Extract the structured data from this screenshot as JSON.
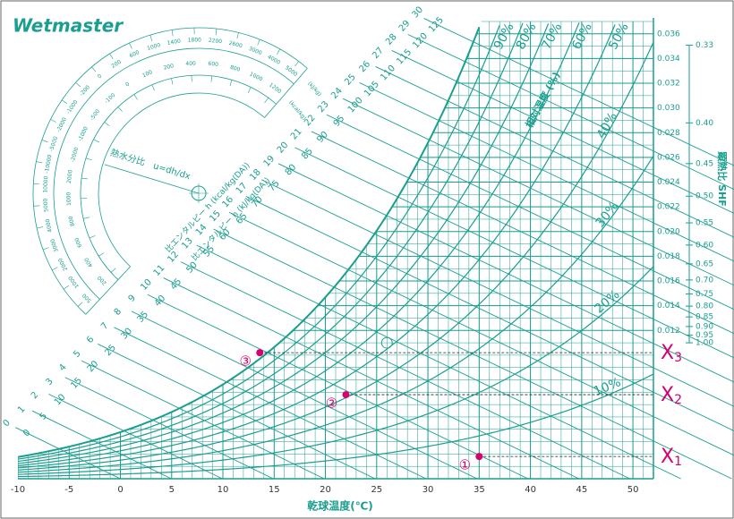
{
  "brand": "Wetmaster",
  "chart_data": {
    "type": "psychrometric",
    "color": "#1a9e8f",
    "point_color": "#d6006e",
    "x_label": "乾球温度(℃)",
    "xlim": [
      -10,
      52
    ],
    "xticks": [
      -10,
      -5,
      0,
      5,
      10,
      15,
      20,
      25,
      30,
      35,
      40,
      45,
      50
    ],
    "x_minor_step": 1,
    "ylim": [
      0,
      0.037
    ],
    "yticks": [
      0.012,
      0.014,
      0.016,
      0.018,
      {
        "value": 0.02,
        "label": "0.020"
      },
      0.022,
      0.024,
      0.026,
      0.028,
      {
        "value": 0.03,
        "label": "0.030"
      },
      0.032,
      0.034,
      0.036
    ],
    "y_minor_step": 0.001,
    "saturation_rh": 100,
    "rh_label": "相対湿度 (%)",
    "rh_curves": {
      "values": [
        10,
        20,
        30,
        40,
        50,
        60,
        70,
        80,
        90
      ],
      "value_labels": [
        "10%",
        "20%",
        "30%",
        "40%",
        "50%",
        "60%",
        "70%",
        "80%",
        "90%"
      ]
    },
    "enthalpy_label": "比エンタルピー h (kJ/kg(DA))",
    "enthalpy_kj": [
      0,
      5,
      10,
      15,
      20,
      25,
      30,
      35,
      40,
      45,
      50,
      55,
      60,
      65,
      70,
      75,
      80,
      85,
      90,
      95,
      100,
      105,
      110,
      115,
      120,
      125
    ],
    "enthalpy_kcal_label": "比エンタルピー h (kcal/kg(DA))",
    "enthalpy_kcal": [
      0,
      1,
      2,
      3,
      4,
      5,
      6,
      7,
      8,
      9,
      10,
      11,
      12,
      13,
      14,
      15,
      16,
      17,
      18,
      19,
      20,
      21,
      22,
      23,
      24,
      25,
      26,
      27,
      28,
      29,
      30
    ],
    "shf_label": "顕熱比 SHF",
    "shf_ticks": [
      0.33,
      {
        "value": 0.4,
        "label": "0.40"
      },
      0.45,
      {
        "value": 0.5,
        "label": "0.50"
      },
      0.55,
      {
        "value": 0.6,
        "label": "0.60"
      },
      0.65,
      {
        "value": 0.7,
        "label": "0.70"
      },
      0.75,
      {
        "value": 0.8,
        "label": "0.80"
      },
      0.85,
      {
        "value": 0.9,
        "label": "0.90"
      },
      0.95,
      {
        "value": 1,
        "label": "1.00"
      }
    ],
    "shf_reference": {
      "x": 26,
      "y": 0.011
    },
    "protractor": {
      "label": "熱水分比　u=dh/dx",
      "outer_unit": "(kJ/kg)",
      "inner_unit": "(kcal/kg)",
      "outer_ticks": [
        "5000",
        "4000",
        "3000",
        "2600",
        "2200",
        "1800",
        "1400",
        "1000",
        "600",
        "200",
        "0",
        "-200",
        "-1000",
        "-2000",
        "-5000",
        "-10000",
        "10000",
        "5000",
        "4000",
        "3000",
        "2000",
        "1000",
        "500"
      ],
      "inner_ticks": [
        "1200",
        "1000",
        "800",
        "600",
        "400",
        "200",
        "100",
        "0",
        "-100",
        "-500",
        "-1000",
        "-2000",
        "2000",
        "1000",
        "800",
        "600",
        "400",
        "200"
      ]
    },
    "points": [
      {
        "label": "①",
        "marker": "X",
        "marker_sub": "1",
        "x": 35,
        "y": 0.0018
      },
      {
        "label": "②",
        "marker": "X",
        "marker_sub": "2",
        "x": 22,
        "y": 0.0068
      },
      {
        "label": "③",
        "marker": "X",
        "marker_sub": "3",
        "x": 13.6,
        "y": 0.0102
      }
    ]
  }
}
